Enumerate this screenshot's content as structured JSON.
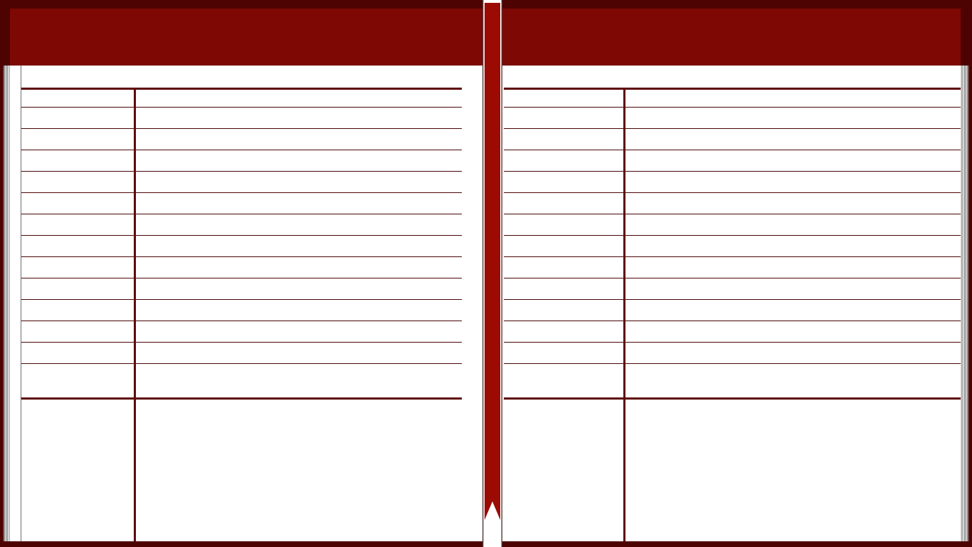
{
  "window": {
    "title": ""
  },
  "colors": {
    "cover": "#4e0303",
    "header_band": "#7d0804",
    "ribbon": "#9b0b03",
    "rule": "#5e0808",
    "paper": "#ffffff"
  },
  "left_page": {
    "title": "",
    "rows": [
      [
        "",
        ""
      ],
      [
        "",
        ""
      ],
      [
        "",
        ""
      ],
      [
        "",
        ""
      ],
      [
        "",
        ""
      ],
      [
        "",
        ""
      ],
      [
        "",
        ""
      ],
      [
        "",
        ""
      ],
      [
        "",
        ""
      ],
      [
        "",
        ""
      ],
      [
        "",
        ""
      ],
      [
        "",
        ""
      ],
      [
        "",
        ""
      ],
      [
        "",
        ""
      ]
    ],
    "notes_label": "",
    "notes_value": ""
  },
  "right_page": {
    "title": "",
    "rows": [
      [
        "",
        ""
      ],
      [
        "",
        ""
      ],
      [
        "",
        ""
      ],
      [
        "",
        ""
      ],
      [
        "",
        ""
      ],
      [
        "",
        ""
      ],
      [
        "",
        ""
      ],
      [
        "",
        ""
      ],
      [
        "",
        ""
      ],
      [
        "",
        ""
      ],
      [
        "",
        ""
      ],
      [
        "",
        ""
      ],
      [
        "",
        ""
      ],
      [
        "",
        ""
      ]
    ],
    "notes_label": "",
    "notes_value": ""
  },
  "ribbon": {
    "icon": "bookmark-ribbon-icon"
  }
}
